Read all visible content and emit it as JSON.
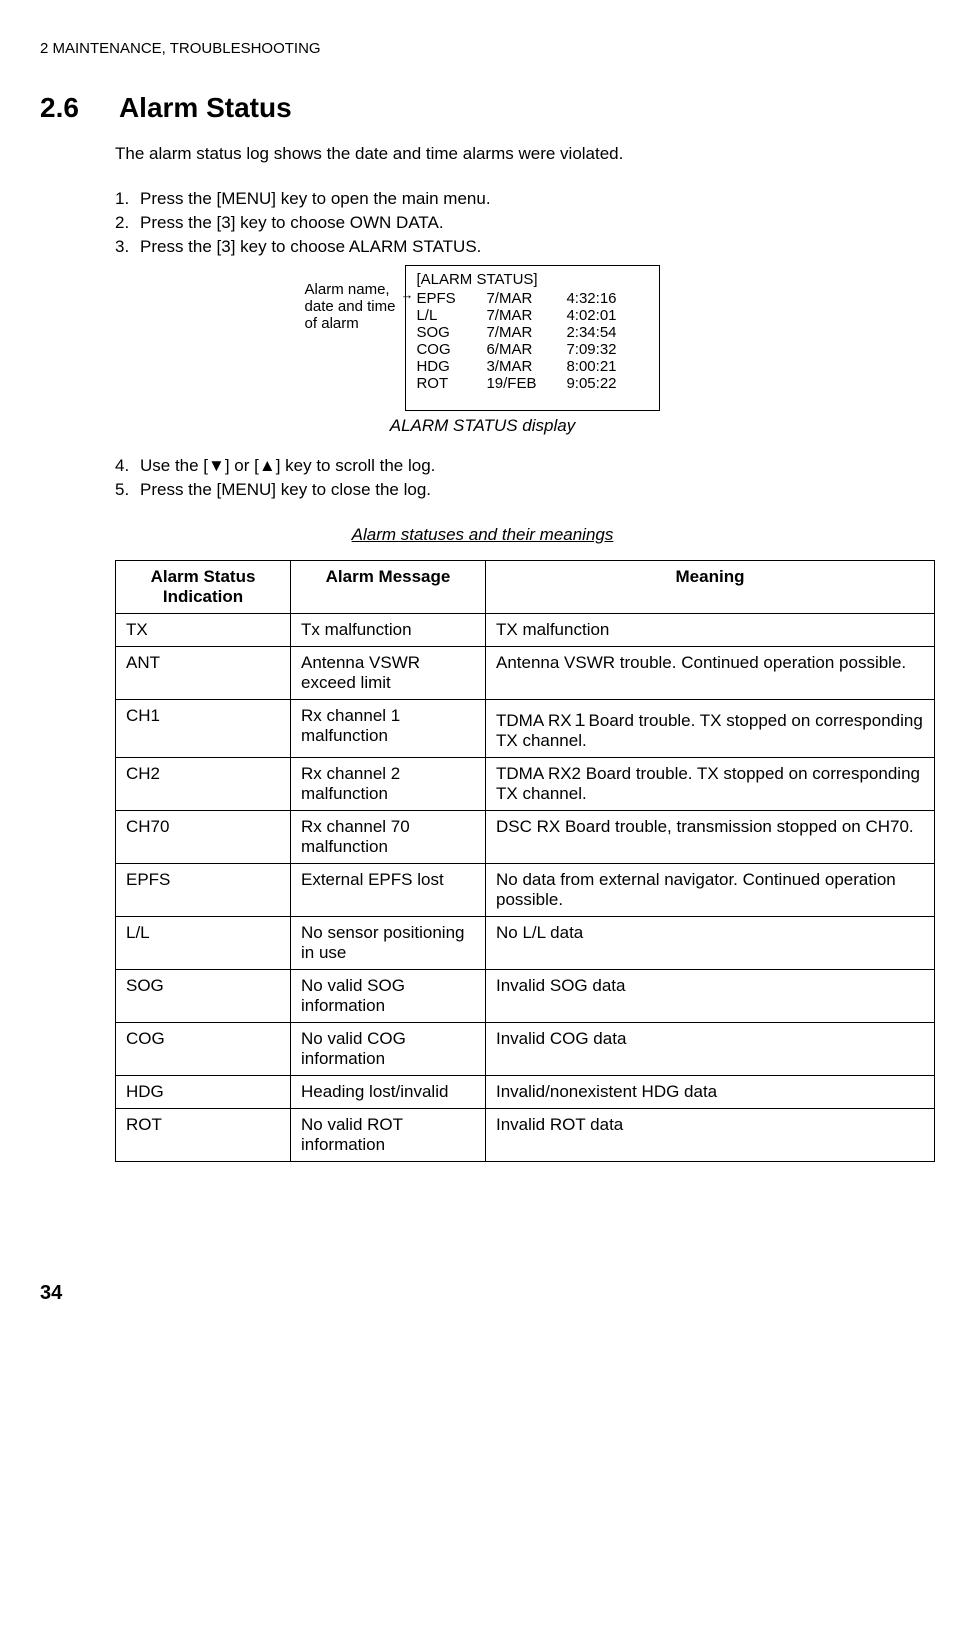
{
  "header": {
    "chapter_label": "2   MAINTENANCE, TROUBLESHOOTING"
  },
  "section": {
    "number": "2.6",
    "title": "Alarm Status",
    "intro": "The alarm status log shows the date and time alarms were violated."
  },
  "steps_a": [
    {
      "num": "1.",
      "text": "Press the [MENU] key to open the main menu."
    },
    {
      "num": "2.",
      "text": "Press the [3] key to choose OWN DATA."
    },
    {
      "num": "3.",
      "text": " Press the [3] key to choose ALARM STATUS."
    }
  ],
  "diagram": {
    "label_line1": "Alarm name,",
    "label_line2": "date and time",
    "label_line3": "of alarm",
    "box_title": "[ALARM STATUS]",
    "rows": [
      {
        "c1": "EPFS",
        "c2": "7/MAR",
        "c3": "4:32:16"
      },
      {
        "c1": "L/L",
        "c2": "7/MAR",
        "c3": "4:02:01"
      },
      {
        "c1": "SOG",
        "c2": "7/MAR",
        "c3": "2:34:54"
      },
      {
        "c1": "COG",
        "c2": "6/MAR",
        "c3": "7:09:32"
      },
      {
        "c1": "HDG",
        "c2": "3/MAR",
        "c3": "8:00:21"
      },
      {
        "c1": "ROT",
        "c2": "19/FEB",
        "c3": "9:05:22"
      }
    ],
    "caption": "ALARM STATUS display"
  },
  "steps_b": [
    {
      "num": "4.",
      "text": "Use the [▼] or [▲] key to scroll the log."
    },
    {
      "num": "5.",
      "text": "Press the [MENU] key to close the log."
    }
  ],
  "table": {
    "caption": "Alarm statuses and their meanings",
    "headers": {
      "h1": "Alarm Status Indication",
      "h2": "Alarm Message",
      "h3": "Meaning"
    },
    "rows": [
      {
        "c1": "TX",
        "c2": "Tx malfunction",
        "c3": "TX malfunction"
      },
      {
        "c1": "ANT",
        "c2": "Antenna VSWR exceed limit",
        "c3": "Antenna VSWR trouble. Continued operation possible."
      },
      {
        "c1": "CH1",
        "c2": "Rx channel 1 malfunction",
        "c3": "TDMA RX１Board trouble. TX stopped on corresponding TX channel."
      },
      {
        "c1": "CH2",
        "c2": "Rx channel 2 malfunction",
        "c3": "TDMA RX2 Board trouble. TX stopped on corresponding TX channel."
      },
      {
        "c1": "CH70",
        "c2": "Rx channel 70 malfunction",
        "c3": "DSC RX Board trouble, transmission stopped on CH70."
      },
      {
        "c1": "EPFS",
        "c2": "External EPFS lost",
        "c3": "No data from external navigator. Continued operation possible."
      },
      {
        "c1": "L/L",
        "c2": "No sensor positioning in use",
        "c3": "No L/L data"
      },
      {
        "c1": "SOG",
        "c2": "No valid SOG information",
        "c3": "Invalid SOG data"
      },
      {
        "c1": "COG",
        "c2": "No valid COG information",
        "c3": "Invalid COG data"
      },
      {
        "c1": "HDG",
        "c2": "Heading lost/invalid",
        "c3": "Invalid/nonexistent HDG data"
      },
      {
        "c1": "ROT",
        "c2": "No valid ROT information",
        "c3": "Invalid ROT data"
      }
    ]
  },
  "page_number": "34"
}
